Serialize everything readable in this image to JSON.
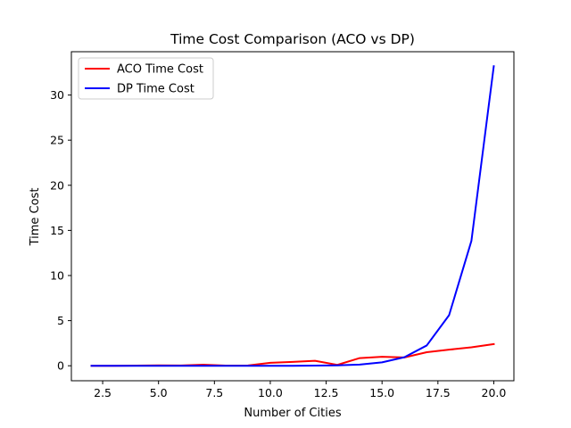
{
  "chart_data": {
    "type": "line",
    "title": "Time Cost Comparison (ACO vs DP)",
    "xlabel": "Number of Cities",
    "ylabel": "Time Cost",
    "xlim": [
      1.1,
      20.9
    ],
    "ylim": [
      -1.66,
      34.8
    ],
    "xticks": [
      2.5,
      5.0,
      7.5,
      10.0,
      12.5,
      15.0,
      17.5,
      20.0
    ],
    "xtick_labels": [
      "2.5",
      "5.0",
      "7.5",
      "10.0",
      "12.5",
      "15.0",
      "17.5",
      "20.0"
    ],
    "yticks": [
      0,
      5,
      10,
      15,
      20,
      25,
      30
    ],
    "ytick_labels": [
      "0",
      "5",
      "10",
      "15",
      "20",
      "25",
      "30"
    ],
    "grid": false,
    "legend_position": "top-left",
    "x": [
      2,
      3,
      4,
      5,
      6,
      7,
      8,
      9,
      10,
      11,
      12,
      13,
      14,
      15,
      16,
      17,
      18,
      19,
      20
    ],
    "series": [
      {
        "name": "ACO Time Cost",
        "color": "#ff0000",
        "values": [
          0.0,
          0.0,
          0.02,
          0.05,
          0.03,
          0.12,
          0.02,
          0.03,
          0.33,
          0.43,
          0.55,
          0.1,
          0.85,
          1.0,
          0.92,
          1.5,
          1.78,
          2.05,
          2.4
        ]
      },
      {
        "name": "DP Time Cost",
        "color": "#0000ff",
        "values": [
          0.0,
          0.0,
          0.0,
          0.0,
          0.0,
          0.0,
          0.0,
          0.0,
          0.0,
          0.0,
          0.02,
          0.05,
          0.13,
          0.38,
          0.95,
          2.25,
          5.6,
          13.85,
          33.2
        ]
      }
    ]
  }
}
